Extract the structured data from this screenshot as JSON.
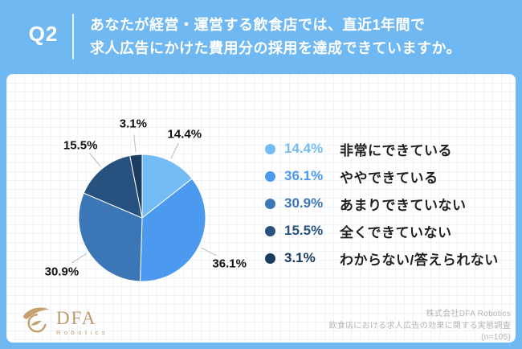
{
  "colors": {
    "frame_blue": "#6FB8F2",
    "panel_white": "#FFFFFF",
    "grid_line": "#EDF3F8",
    "label_black": "#111111",
    "leader_gray": "#BBBBBB",
    "logo_gold": "#BD9A6E",
    "credit_gray": "#B5B5B5"
  },
  "header": {
    "q_label": "Q2",
    "question_line1": "あなたが経営・運営する飲食店では、直近1年間で",
    "question_line2": "求人広告にかけた費用分の採用を達成できていますか。"
  },
  "chart_data": {
    "type": "pie",
    "title": "あなたが経営・運営する飲食店では、直近1年間で求人広告にかけた費用分の採用を達成できていますか。",
    "sample_note": "(n=105)",
    "start_angle_deg": -90,
    "direction": "clockwise",
    "legend_position": "right",
    "slices": [
      {
        "label": "非常にできている",
        "value": 14.4,
        "display": "14.4%",
        "color": "#73BCF6"
      },
      {
        "label": "ややできている",
        "value": 36.1,
        "display": "36.1%",
        "color": "#4C9AF0"
      },
      {
        "label": "あまりできていない",
        "value": 30.9,
        "display": "30.9%",
        "color": "#3B76B6"
      },
      {
        "label": "全くできていない",
        "value": 15.5,
        "display": "15.5%",
        "color": "#27517E"
      },
      {
        "label": "わからない/答えられない",
        "value": 3.1,
        "display": "3.1%",
        "color": "#1B3B5F"
      }
    ]
  },
  "footer": {
    "logo_name": "DFA",
    "logo_sub": "Robotics",
    "credit_line1": "株式会社DFA Robotics",
    "credit_line2": "飲食店における求人広告の効果に関する実態調査",
    "credit_line3": "(n=105)"
  }
}
